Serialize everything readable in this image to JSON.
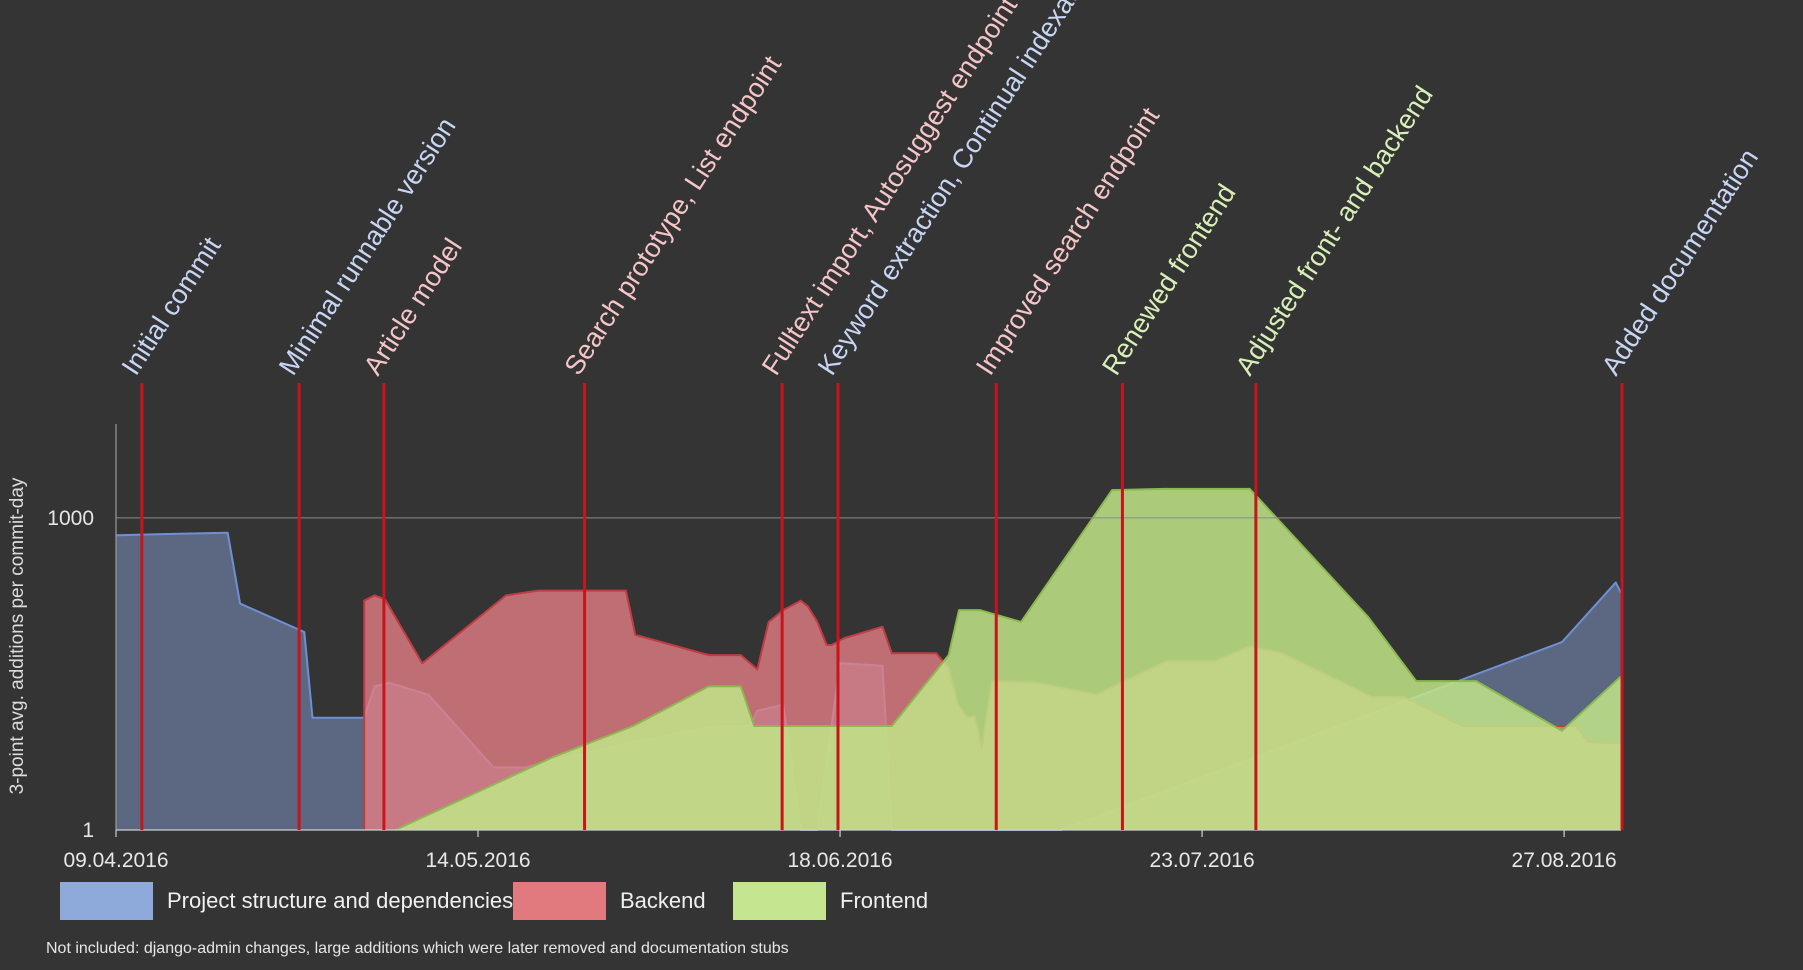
{
  "chart_data": {
    "type": "area",
    "title": "",
    "ylabel": "3-point avg. additions per commit-day",
    "xlabel": "",
    "yscale": "log",
    "ylim": [
      1,
      7000
    ],
    "yticks": [
      1,
      1000
    ],
    "y_gridlines": [
      1000
    ],
    "xlim_days": [
      0,
      145.5
    ],
    "xticks": [
      {
        "day": 0,
        "label": "09.04.2016"
      },
      {
        "day": 35,
        "label": "14.05.2016"
      },
      {
        "day": 70,
        "label": "18.06.2016"
      },
      {
        "day": 105,
        "label": "23.07.2016"
      },
      {
        "day": 140,
        "label": "27.08.2016"
      }
    ],
    "x_unit": "days since 09.04.2016",
    "series": [
      {
        "name": "Project structure and dependencies",
        "color": "#8eaadb",
        "fill": "#8ea9e0",
        "stroke": "#6f8fd4",
        "opacity": 0.45,
        "points": [
          [
            0,
            680
          ],
          [
            5,
            700
          ],
          [
            10.8,
            720
          ],
          [
            12,
            150
          ],
          [
            18.2,
            80
          ],
          [
            19,
            12
          ],
          [
            24,
            12
          ],
          [
            25,
            24
          ],
          [
            26.4,
            26
          ],
          [
            30.2,
            20
          ],
          [
            36.5,
            4
          ],
          [
            39.6,
            4
          ],
          [
            50,
            7
          ],
          [
            54.4,
            8.5
          ],
          [
            58.2,
            10
          ],
          [
            61.3,
            10
          ],
          [
            62,
            14
          ],
          [
            64.5,
            16
          ],
          [
            66.2,
            1
          ],
          [
            67.8,
            1
          ],
          [
            70,
            40
          ],
          [
            74.1,
            38
          ],
          [
            75,
            1
          ],
          [
            91.4,
            1
          ],
          [
            139.8,
            64
          ],
          [
            145,
            240
          ],
          [
            145.5,
            190
          ]
        ]
      },
      {
        "name": "Backend",
        "color": "#e07a7f",
        "fill": "#e27e83",
        "stroke": "#c03c44",
        "opacity": 0.8,
        "points": [
          [
            24,
            1
          ],
          [
            24,
            160
          ],
          [
            25,
            180
          ],
          [
            26,
            165
          ],
          [
            29.6,
            40
          ],
          [
            37.7,
            180
          ],
          [
            40.8,
            200
          ],
          [
            49.3,
            200
          ],
          [
            50.2,
            75
          ],
          [
            57.3,
            48
          ],
          [
            60.4,
            48
          ],
          [
            62,
            35
          ],
          [
            63.1,
            100
          ],
          [
            64.5,
            130
          ],
          [
            66.2,
            160
          ],
          [
            66.9,
            140
          ],
          [
            67.8,
            100
          ],
          [
            68.7,
            60
          ],
          [
            69.2,
            60
          ],
          [
            70.4,
            70
          ],
          [
            74.1,
            90
          ],
          [
            75,
            50
          ],
          [
            79.3,
            50
          ],
          [
            80.5,
            36
          ],
          [
            81.4,
            16
          ],
          [
            82.3,
            12
          ],
          [
            83,
            12.5
          ],
          [
            83.7,
            6
          ],
          [
            84.7,
            27
          ],
          [
            89,
            26
          ],
          [
            94.8,
            20
          ],
          [
            101.6,
            42
          ],
          [
            106.2,
            42
          ],
          [
            109.6,
            58
          ],
          [
            112.7,
            50
          ],
          [
            121.4,
            19
          ],
          [
            124.5,
            19
          ],
          [
            128.5,
            12
          ],
          [
            130.2,
            10
          ],
          [
            140.3,
            10
          ],
          [
            141.2,
            10
          ],
          [
            142.3,
            7
          ],
          [
            145.5,
            6.8
          ]
        ]
      },
      {
        "name": "Frontend",
        "color": "#c5e590",
        "fill": "#c1e688",
        "stroke": "#8cb94f",
        "opacity": 0.85,
        "points": [
          [
            27,
            1
          ],
          [
            42.2,
            5
          ],
          [
            50,
            10
          ],
          [
            57.3,
            24
          ],
          [
            60.4,
            24
          ],
          [
            61.7,
            10
          ],
          [
            67.8,
            10
          ],
          [
            75,
            10
          ],
          [
            80.5,
            48
          ],
          [
            81.5,
            130
          ],
          [
            83.5,
            130
          ],
          [
            87.5,
            100
          ],
          [
            96.3,
            1850
          ],
          [
            101.3,
            1900
          ],
          [
            109.6,
            1900
          ],
          [
            121.1,
            110
          ],
          [
            125.7,
            27
          ],
          [
            131.5,
            27
          ],
          [
            139.8,
            9
          ],
          [
            145.5,
            30
          ]
        ]
      }
    ],
    "milestones": [
      {
        "day": 2.5,
        "label": "Initial commit",
        "color": "#c8d6f5"
      },
      {
        "day": 17.7,
        "label": "Minimal runnable version",
        "color": "#c8d6f5"
      },
      {
        "day": 25.9,
        "label": "Article model",
        "color": "#f5c5c8"
      },
      {
        "day": 45.3,
        "label": "Search prototype, List endpoint",
        "color": "#f5c5c8"
      },
      {
        "day": 64.4,
        "label": "Fulltext import, Autosuggest endpoint",
        "color": "#f5c5c8"
      },
      {
        "day": 69.8,
        "label": "Keyword extraction, Continual indexation",
        "color": "#c8d6f5"
      },
      {
        "day": 85.1,
        "label": "Improved search endpoint",
        "color": "#f5c5c8"
      },
      {
        "day": 97.3,
        "label": "Renewed frontend",
        "color": "#d8f0b8"
      },
      {
        "day": 110.2,
        "label": "Adjusted front- and backend",
        "color": "#d8f0b8"
      },
      {
        "day": 145.6,
        "label": "Added documentation",
        "color": "#c8d6f5"
      }
    ],
    "legend": {
      "placement": "bottom-left"
    },
    "note": "Not included: django-admin changes, large additions which were later removed and documentation stubs"
  }
}
